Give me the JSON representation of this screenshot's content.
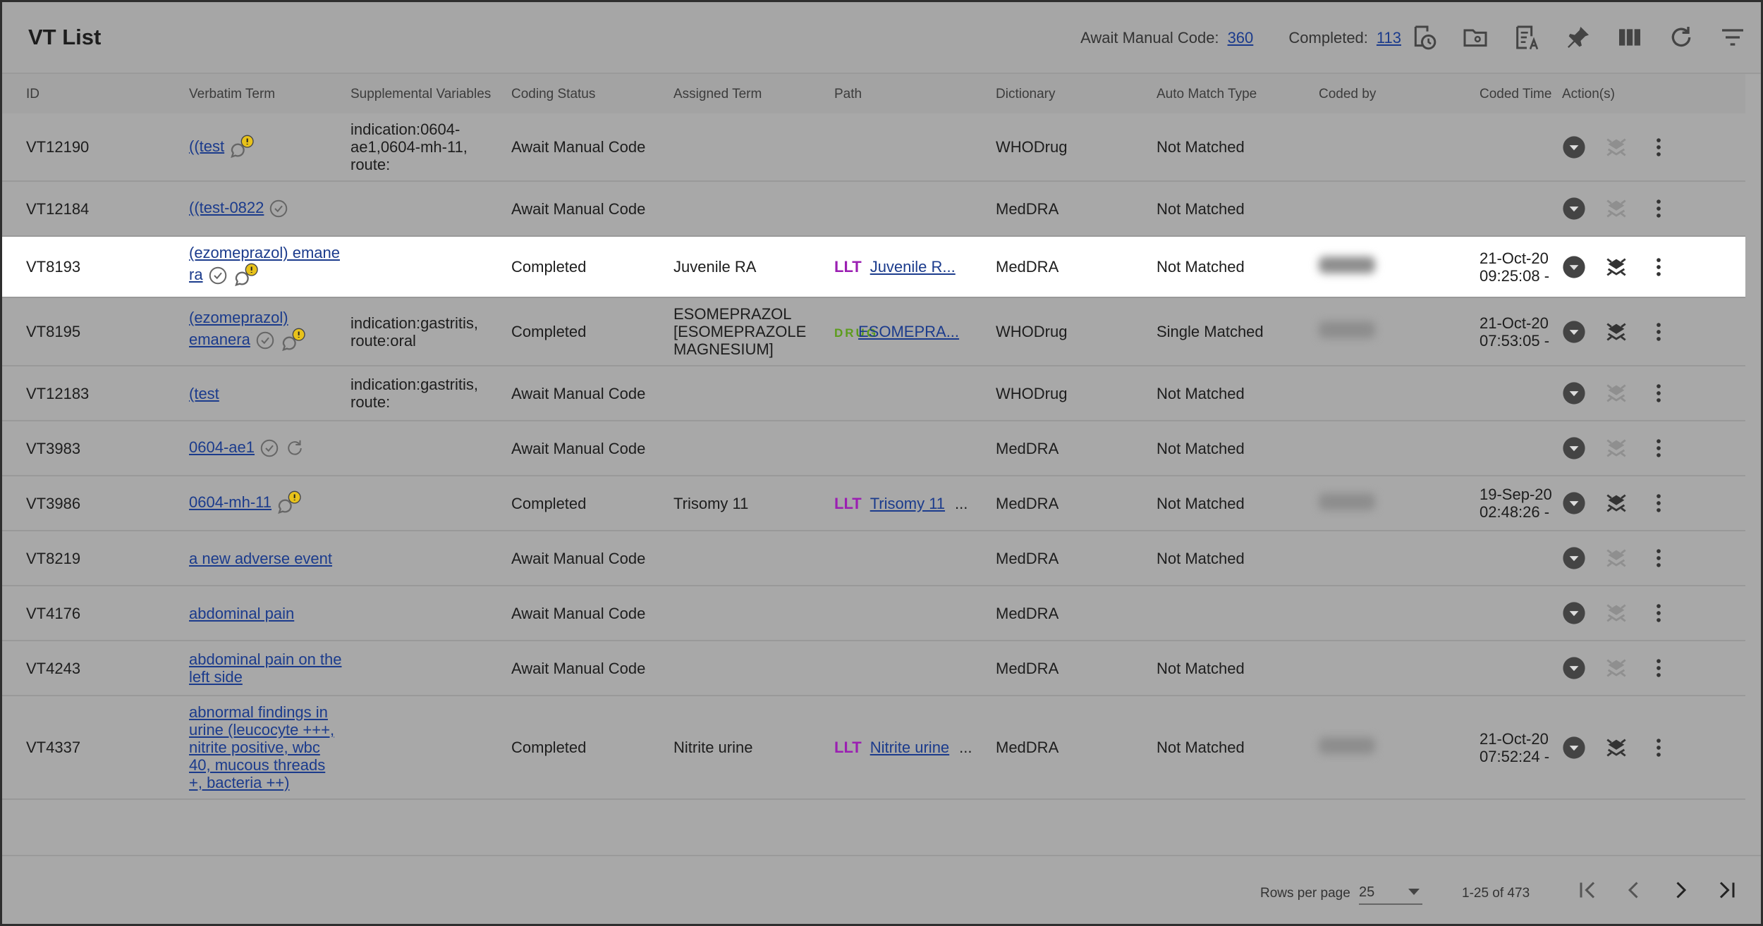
{
  "header": {
    "title": "VT List",
    "await_label": "Await Manual Code:",
    "await_count": 360,
    "completed_label": "Completed:",
    "completed_count": 113
  },
  "table": {
    "columns": [
      "ID",
      "Verbatim Term",
      "Supplemental Variables",
      "Coding Status",
      "Assigned Term",
      "Path",
      "Dictionary",
      "Auto Match Type",
      "Coded by",
      "Coded Time",
      "Action(s)"
    ],
    "rows": [
      {
        "id": "VT12190",
        "verbatim": "((test",
        "supplemental": "indication:0604-ae1,0604-mh-11, route:",
        "status": "Await Manual Code",
        "dictionary": "WHODrug",
        "match": "Not Matched"
      },
      {
        "id": "VT12184",
        "verbatim": "((test-0822",
        "status": "Await Manual Code",
        "dictionary": "MedDRA",
        "match": "Not Matched"
      },
      {
        "id": "VT8193",
        "verbatim": "(ezomeprazol) emane ra",
        "status": "Completed",
        "assigned": "Juvenile RA",
        "path_tag": "LLT",
        "path": "Juvenile R...",
        "dictionary": "MedDRA",
        "match": "Not Matched",
        "coded_date": "21-Oct-20",
        "coded_hour": "09:25:08 -"
      },
      {
        "id": "VT8195",
        "verbatim": "(ezomeprazol) emanera",
        "supplemental": "indication:gastritis, route:oral",
        "status": "Completed",
        "assigned": "ESOMEPRAZOL [ESOMEPRAZOLE MAGNESIUM]",
        "path_tag": "DRUG",
        "path": "ESOMEPRA...",
        "dictionary": "WHODrug",
        "match": "Single Matched",
        "coded_date": "21-Oct-20",
        "coded_hour": "07:53:05 -"
      },
      {
        "id": "VT12183",
        "verbatim": "(test",
        "supplemental": "indication:gastritis, route:",
        "status": "Await Manual Code",
        "dictionary": "WHODrug",
        "match": "Not Matched"
      },
      {
        "id": "VT3983",
        "verbatim": "0604-ae1",
        "status": "Await Manual Code",
        "dictionary": "MedDRA",
        "match": "Not Matched"
      },
      {
        "id": "VT3986",
        "verbatim": "0604-mh-11",
        "status": "Completed",
        "assigned": "Trisomy 11",
        "path_tag": "LLT",
        "path": "Trisomy 11",
        "path_more": "...",
        "dictionary": "MedDRA",
        "match": "Not Matched",
        "coded_date": "19-Sep-20",
        "coded_hour": "02:48:26 -"
      },
      {
        "id": "VT8219",
        "verbatim": "a new adverse event",
        "status": "Await Manual Code",
        "dictionary": "MedDRA",
        "match": "Not Matched"
      },
      {
        "id": "VT4176",
        "verbatim": "abdominal pain",
        "status": "Await Manual Code",
        "dictionary": "MedDRA"
      },
      {
        "id": "VT4243",
        "verbatim": "abdominal pain on the left side",
        "status": "Await Manual Code",
        "dictionary": "MedDRA",
        "match": "Not Matched"
      },
      {
        "id": "VT4337",
        "verbatim": "abnormal findings in urine (leucocyte +++, nitrite positive, wbc 40, mucous threads +, bacteria ++)",
        "status": "Completed",
        "assigned": "Nitrite urine",
        "path_tag": "LLT",
        "path": "Nitrite urine",
        "path_more": "...",
        "dictionary": "MedDRA",
        "match": "Not Matched",
        "coded_date": "21-Oct-20",
        "coded_hour": "07:52:24 -"
      }
    ]
  },
  "footer": {
    "rows_label": "Rows per page",
    "rows_value": 25,
    "range": "1-25 of 473"
  }
}
